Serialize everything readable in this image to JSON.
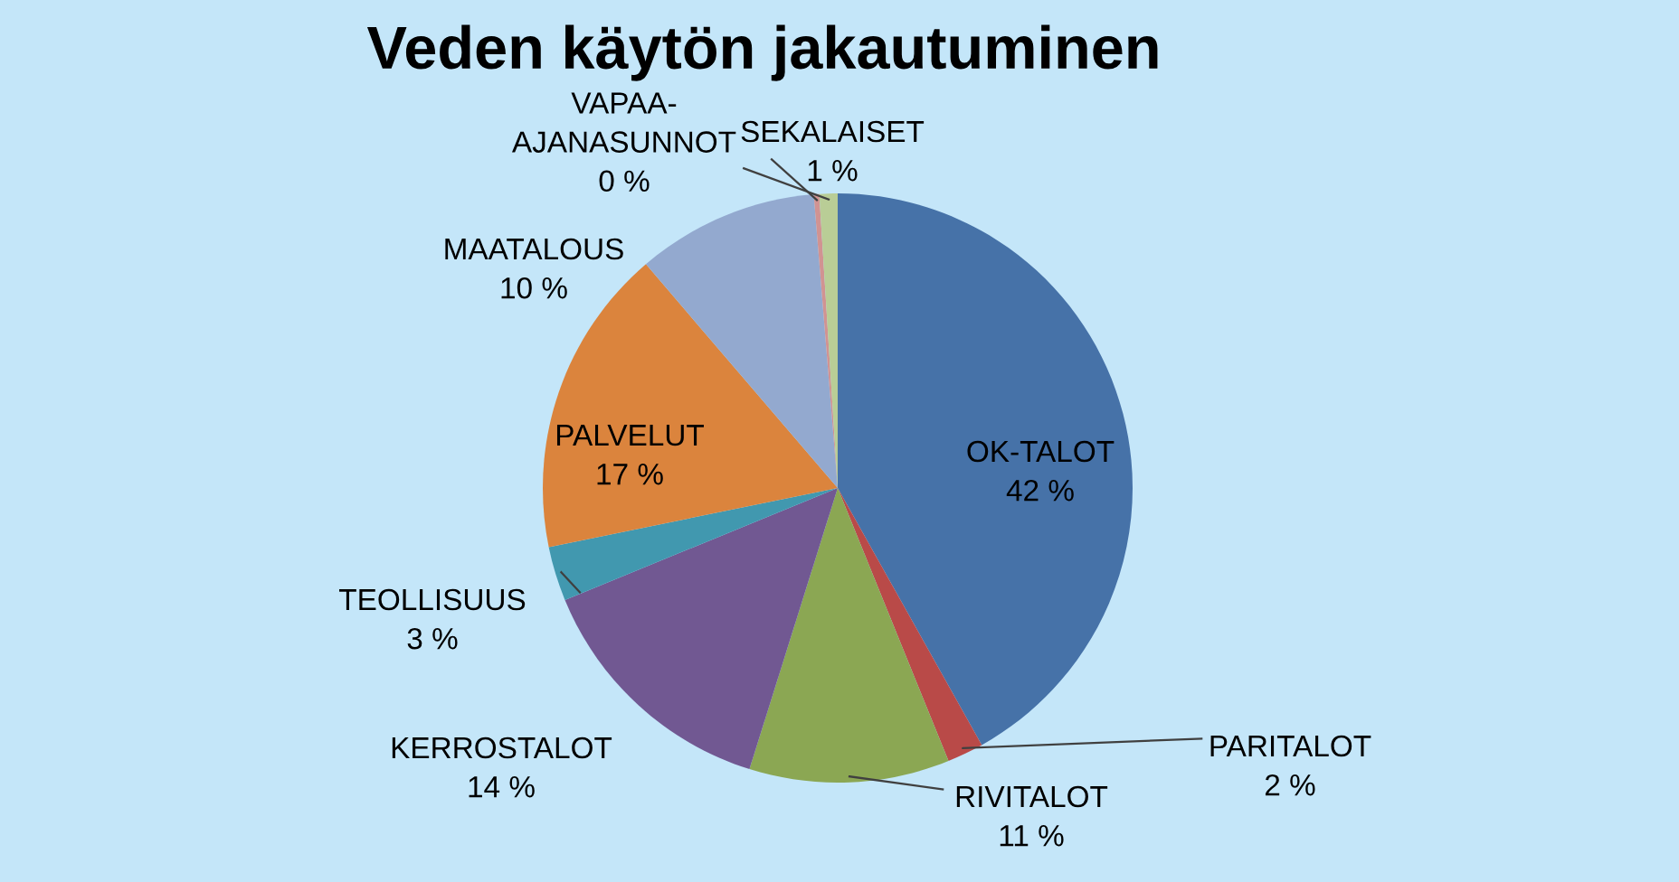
{
  "chart_data": {
    "type": "pie",
    "title": "Veden käytön jakautuminen",
    "categories": [
      "OK-TALOT",
      "PARITALOT",
      "RIVITALOT",
      "KERROSTALOT",
      "TEOLLISUUS",
      "PALVELUT",
      "MAATALOUS",
      "VAPAA-\nAJANASUNNOT",
      "SEKALAISET"
    ],
    "values": [
      42,
      2,
      11,
      14,
      3,
      17,
      10,
      0.3,
      1
    ],
    "value_labels": [
      "42 %",
      "2 %",
      "11 %",
      "14 %",
      "3 %",
      "17 %",
      "10 %",
      "0 %",
      "1 %"
    ],
    "colors": [
      "#4672a8",
      "#b94a48",
      "#8ba753",
      "#715892",
      "#4198af",
      "#db843d",
      "#93a9cf",
      "#d19392",
      "#b9cd96"
    ]
  }
}
